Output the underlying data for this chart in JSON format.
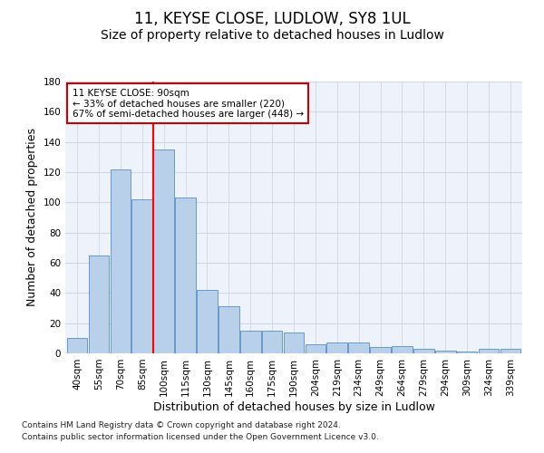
{
  "title1": "11, KEYSE CLOSE, LUDLOW, SY8 1UL",
  "title2": "Size of property relative to detached houses in Ludlow",
  "xlabel": "Distribution of detached houses by size in Ludlow",
  "ylabel": "Number of detached properties",
  "categories": [
    "40sqm",
    "55sqm",
    "70sqm",
    "85sqm",
    "100sqm",
    "115sqm",
    "130sqm",
    "145sqm",
    "160sqm",
    "175sqm",
    "190sqm",
    "204sqm",
    "219sqm",
    "234sqm",
    "249sqm",
    "264sqm",
    "279sqm",
    "294sqm",
    "309sqm",
    "324sqm",
    "339sqm"
  ],
  "values": [
    10,
    65,
    122,
    102,
    135,
    103,
    42,
    31,
    15,
    15,
    14,
    6,
    7,
    7,
    4,
    5,
    3,
    2,
    1,
    3,
    3
  ],
  "bar_color": "#b8d0ea",
  "bar_edge_color": "#6699cc",
  "grid_color": "#d0d8e8",
  "background_color": "#eef2fb",
  "ylim": [
    0,
    180
  ],
  "yticks": [
    0,
    20,
    40,
    60,
    80,
    100,
    120,
    140,
    160,
    180
  ],
  "red_line_x": 3.5,
  "annotation_text1": "11 KEYSE CLOSE: 90sqm",
  "annotation_text2": "← 33% of detached houses are smaller (220)",
  "annotation_text3": "67% of semi-detached houses are larger (448) →",
  "annotation_box_color": "#ffffff",
  "annotation_border_color": "#cc0000",
  "footer1": "Contains HM Land Registry data © Crown copyright and database right 2024.",
  "footer2": "Contains public sector information licensed under the Open Government Licence v3.0.",
  "title1_fontsize": 12,
  "title2_fontsize": 10,
  "tick_fontsize": 7.5,
  "label_fontsize": 9,
  "footer_fontsize": 6.5
}
